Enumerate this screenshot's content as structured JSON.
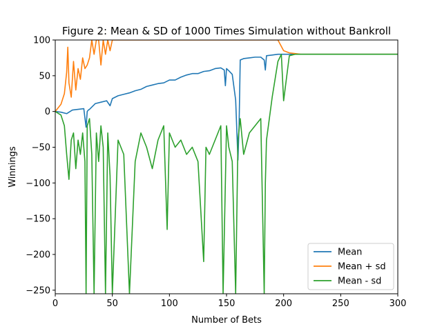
{
  "chart_data": {
    "type": "line",
    "title": "Figure 2: Mean & SD of 1000 Times Simulation without Bankroll",
    "xlabel": "Number of Bets",
    "ylabel": "Winnings",
    "xlim": [
      0,
      300
    ],
    "ylim": [
      -255,
      100
    ],
    "xticks": [
      0,
      50,
      100,
      150,
      200,
      250,
      300
    ],
    "yticks": [
      -250,
      -200,
      -150,
      -100,
      -50,
      0,
      50,
      100
    ],
    "grid": false,
    "legend_position": "lower-right",
    "colors": {
      "mean": "#1f77b4",
      "mean_plus_sd": "#ff7f0e",
      "mean_minus_sd": "#2ca02c"
    },
    "series": [
      {
        "name": "Mean",
        "color": "#1f77b4",
        "x": [
          0,
          5,
          10,
          15,
          20,
          25,
          27,
          28,
          29,
          30,
          35,
          40,
          45,
          48,
          50,
          55,
          60,
          65,
          70,
          75,
          80,
          85,
          90,
          95,
          100,
          105,
          110,
          115,
          120,
          125,
          130,
          135,
          140,
          145,
          148,
          149,
          150,
          152,
          155,
          158,
          160,
          161,
          162,
          165,
          170,
          175,
          180,
          183,
          184,
          185,
          190,
          195,
          200,
          205,
          210,
          215,
          220,
          300
        ],
        "y": [
          0,
          -1,
          -3,
          2,
          3,
          4,
          -22,
          0,
          2,
          3,
          11,
          13,
          15,
          8,
          18,
          22,
          24,
          26,
          29,
          31,
          35,
          37,
          39,
          40,
          44,
          44,
          48,
          51,
          53,
          53,
          56,
          57,
          60,
          61,
          58,
          36,
          60,
          57,
          52,
          16,
          -68,
          -20,
          72,
          74,
          75,
          76,
          76,
          72,
          58,
          78,
          79,
          80,
          80,
          80,
          80,
          80,
          80,
          80
        ]
      },
      {
        "name": "Mean + sd",
        "color": "#ff7f0e",
        "x": [
          0,
          5,
          8,
          10,
          11,
          12,
          14,
          16,
          18,
          20,
          22,
          24,
          26,
          28,
          30,
          32,
          34,
          36,
          38,
          40,
          42,
          44,
          46,
          48,
          50,
          55,
          60,
          65,
          70,
          75,
          80,
          90,
          100,
          110,
          120,
          130,
          140,
          150,
          160,
          170,
          180,
          190,
          195,
          200,
          205,
          210,
          215,
          218,
          300
        ],
        "y": [
          0,
          10,
          25,
          55,
          90,
          40,
          20,
          70,
          30,
          60,
          45,
          75,
          60,
          65,
          75,
          100,
          80,
          100,
          100,
          65,
          100,
          80,
          100,
          85,
          100,
          100,
          100,
          100,
          100,
          100,
          100,
          100,
          100,
          100,
          100,
          100,
          100,
          100,
          100,
          100,
          100,
          100,
          100,
          85,
          82,
          81,
          80,
          80,
          80
        ]
      },
      {
        "name": "Mean - sd",
        "color": "#2ca02c",
        "x": [
          0,
          5,
          8,
          10,
          12,
          14,
          16,
          18,
          20,
          22,
          24,
          26,
          27,
          28,
          30,
          32,
          34,
          36,
          38,
          40,
          42,
          44,
          46,
          48,
          50,
          55,
          60,
          65,
          70,
          75,
          80,
          85,
          90,
          95,
          98,
          100,
          105,
          110,
          115,
          120,
          125,
          130,
          132,
          135,
          140,
          145,
          147,
          150,
          152,
          155,
          158,
          160,
          162,
          165,
          170,
          175,
          180,
          183,
          184,
          185,
          190,
          195,
          198,
          200,
          205,
          210,
          300
        ],
        "y": [
          0,
          -5,
          -20,
          -60,
          -95,
          -40,
          -30,
          -80,
          -40,
          -60,
          -30,
          -70,
          -255,
          -20,
          -10,
          -60,
          -255,
          -30,
          -70,
          -20,
          -50,
          -255,
          -30,
          -90,
          -255,
          -40,
          -60,
          -255,
          -70,
          -30,
          -50,
          -80,
          -40,
          -20,
          -165,
          -30,
          -50,
          -40,
          -60,
          -50,
          -70,
          -210,
          -50,
          -60,
          -40,
          -20,
          -255,
          -20,
          -50,
          -70,
          -255,
          -40,
          -10,
          -60,
          -30,
          -20,
          -10,
          -255,
          -100,
          -40,
          20,
          70,
          80,
          15,
          78,
          80,
          80
        ]
      }
    ]
  }
}
